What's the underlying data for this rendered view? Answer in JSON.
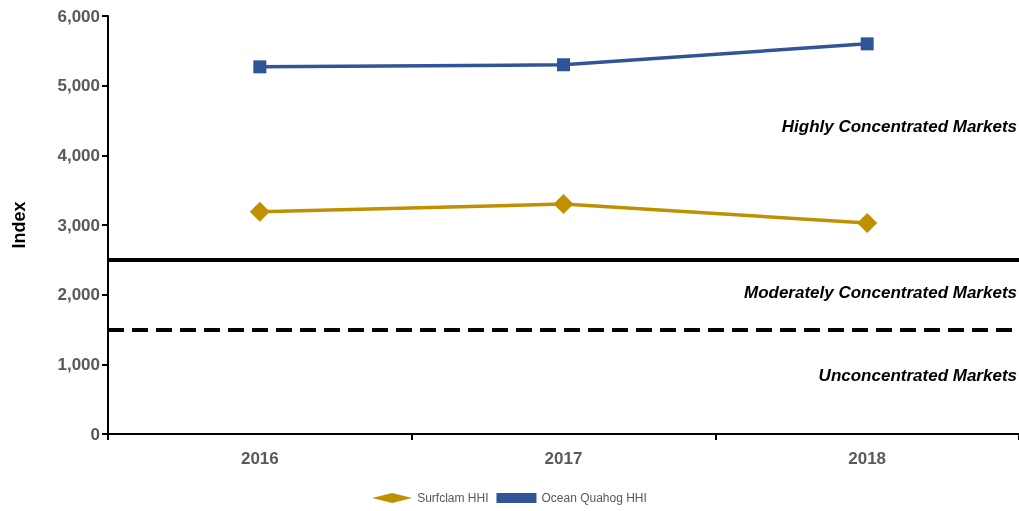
{
  "chart_data": {
    "type": "line",
    "ylabel": "Index",
    "categories": [
      "2016",
      "2017",
      "2018"
    ],
    "series": [
      {
        "name": "Surfclam HHI",
        "color": "#bf9000",
        "values": [
          3190,
          3300,
          3030
        ],
        "marker": "diamond"
      },
      {
        "name": "Ocean Quahog HHI",
        "color": "#2f5597",
        "values": [
          5270,
          5300,
          5600
        ],
        "marker": "square"
      }
    ],
    "ylim": [
      0,
      6000
    ],
    "yticks": [
      {
        "value": 0,
        "label": "0"
      },
      {
        "value": 1000,
        "label": "1,000"
      },
      {
        "value": 2000,
        "label": "2,000"
      },
      {
        "value": 3000,
        "label": "3,000"
      },
      {
        "value": 4000,
        "label": "4,000"
      },
      {
        "value": 5000,
        "label": "5,000"
      },
      {
        "value": 6000,
        "label": "6,000"
      }
    ],
    "ref_lines": [
      {
        "axis": "y",
        "value": 2500,
        "color": "#000000",
        "line_style": "solid"
      },
      {
        "axis": "y",
        "value": 1500,
        "color": "#000000",
        "line_style": "dashed"
      }
    ],
    "annotations": [
      "Highly Concentrated Markets",
      "Moderately Concentrated Markets",
      "Unconcentrated Markets"
    ],
    "grid": false,
    "legend": "bottom",
    "line_style": "solid"
  }
}
